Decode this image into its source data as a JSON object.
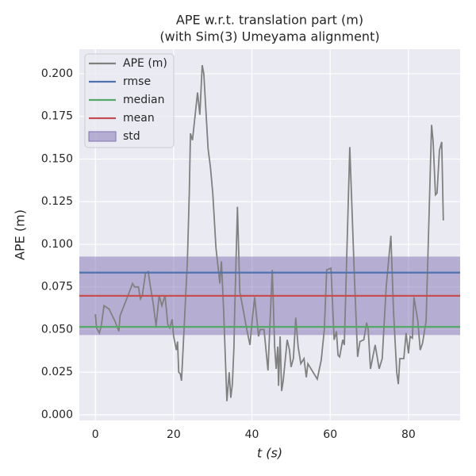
{
  "chart_data": {
    "type": "line",
    "title": [
      "APE w.r.t. translation part (m)",
      "(with Sim(3) Umeyama alignment)"
    ],
    "xlabel": "t (s)",
    "ylabel": "APE (m)",
    "xlim": [
      -4.1,
      93.2
    ],
    "ylim": [
      -0.0033,
      0.2144
    ],
    "xticks": [
      0,
      20,
      40,
      60,
      80
    ],
    "yticks": [
      {
        "value": 0,
        "label": "0.000"
      },
      {
        "value": 0.025,
        "label": "0.025"
      },
      {
        "value": 0.05,
        "label": "0.050"
      },
      {
        "value": 0.075,
        "label": "0.075"
      },
      {
        "value": 0.1,
        "label": "0.100"
      },
      {
        "value": 0.125,
        "label": "0.125"
      },
      {
        "value": 0.15,
        "label": "0.150"
      },
      {
        "value": 0.175,
        "label": "0.175"
      },
      {
        "value": 0.2,
        "label": "0.200"
      }
    ],
    "grid": true,
    "legend": "upper left",
    "series": [
      {
        "name": "APE (m)",
        "color": "#808080",
        "x": [
          0,
          0.3,
          1,
          1.5,
          2.2,
          3.5,
          5,
          6,
          6.3,
          8,
          9.5,
          10,
          11,
          11.5,
          12,
          12.8,
          13.5,
          14,
          14.8,
          15.5,
          16.3,
          17,
          17.8,
          18.5,
          19,
          19.6,
          20,
          20.7,
          21,
          21.3,
          21.7,
          22,
          23.5,
          24,
          24.3,
          24.8,
          26.1,
          26.7,
          27.3,
          27.7,
          28.8,
          29.4,
          30,
          30.8,
          31.8,
          32.2,
          32.8,
          33.6,
          34.2,
          34.6,
          35,
          35.4,
          35.6,
          36.3,
          36.9,
          37.9,
          38.7,
          39.5,
          40.1,
          40.7,
          41.3,
          41.7,
          42.1,
          43.1,
          44.1,
          45.2,
          45.8,
          46.2,
          46.6,
          46.8,
          47.2,
          47.6,
          48,
          49,
          49.6,
          50,
          50.6,
          51.2,
          51.8,
          52.5,
          53.3,
          53.9,
          54.3,
          56.7,
          57.7,
          58.5,
          59.1,
          60.2,
          61,
          61.6,
          62,
          62.4,
          63.2,
          63.6,
          65,
          66.2,
          67,
          67.6,
          68.6,
          69.3,
          69.7,
          70.3,
          71.5,
          72.5,
          73.3,
          74.3,
          75.5,
          76.2,
          77,
          77.4,
          77.8,
          78.8,
          79.4,
          80,
          80.4,
          81,
          81.4,
          82.4,
          83,
          83.6,
          84.5,
          85.3,
          85.9,
          86.3,
          86.9,
          87.3,
          87.9,
          88.5,
          88.9
        ],
        "values": [
          0.059,
          0.051,
          0.048,
          0.052,
          0.064,
          0.062,
          0.055,
          0.049,
          0.058,
          0.068,
          0.077,
          0.075,
          0.075,
          0.068,
          0.07,
          0.083,
          0.084,
          0.076,
          0.065,
          0.052,
          0.07,
          0.064,
          0.07,
          0.053,
          0.051,
          0.056,
          0.046,
          0.038,
          0.043,
          0.025,
          0.024,
          0.02,
          0.09,
          0.13,
          0.165,
          0.161,
          0.189,
          0.176,
          0.205,
          0.2,
          0.156,
          0.145,
          0.13,
          0.098,
          0.077,
          0.09,
          0.06,
          0.008,
          0.025,
          0.01,
          0.018,
          0.04,
          0.06,
          0.122,
          0.072,
          0.06,
          0.05,
          0.041,
          0.056,
          0.069,
          0.055,
          0.046,
          0.05,
          0.05,
          0.026,
          0.085,
          0.04,
          0.027,
          0.04,
          0.017,
          0.046,
          0.014,
          0.02,
          0.044,
          0.038,
          0.028,
          0.033,
          0.057,
          0.04,
          0.03,
          0.033,
          0.022,
          0.03,
          0.021,
          0.032,
          0.05,
          0.085,
          0.086,
          0.044,
          0.049,
          0.035,
          0.034,
          0.044,
          0.041,
          0.157,
          0.08,
          0.034,
          0.043,
          0.044,
          0.054,
          0.05,
          0.027,
          0.041,
          0.027,
          0.033,
          0.075,
          0.105,
          0.06,
          0.025,
          0.018,
          0.033,
          0.033,
          0.048,
          0.036,
          0.046,
          0.045,
          0.069,
          0.055,
          0.038,
          0.042,
          0.055,
          0.12,
          0.17,
          0.16,
          0.129,
          0.13,
          0.155,
          0.16,
          0.114
        ]
      }
    ],
    "stats": [
      {
        "name": "rmse",
        "color": "#4c72b0",
        "value": 0.0834
      },
      {
        "name": "median",
        "color": "#55a868",
        "value": 0.0516
      },
      {
        "name": "mean",
        "color": "#c44e52",
        "value": 0.0698
      },
      {
        "name": "std",
        "color": "#8172b2",
        "value": 0.023
      }
    ]
  }
}
